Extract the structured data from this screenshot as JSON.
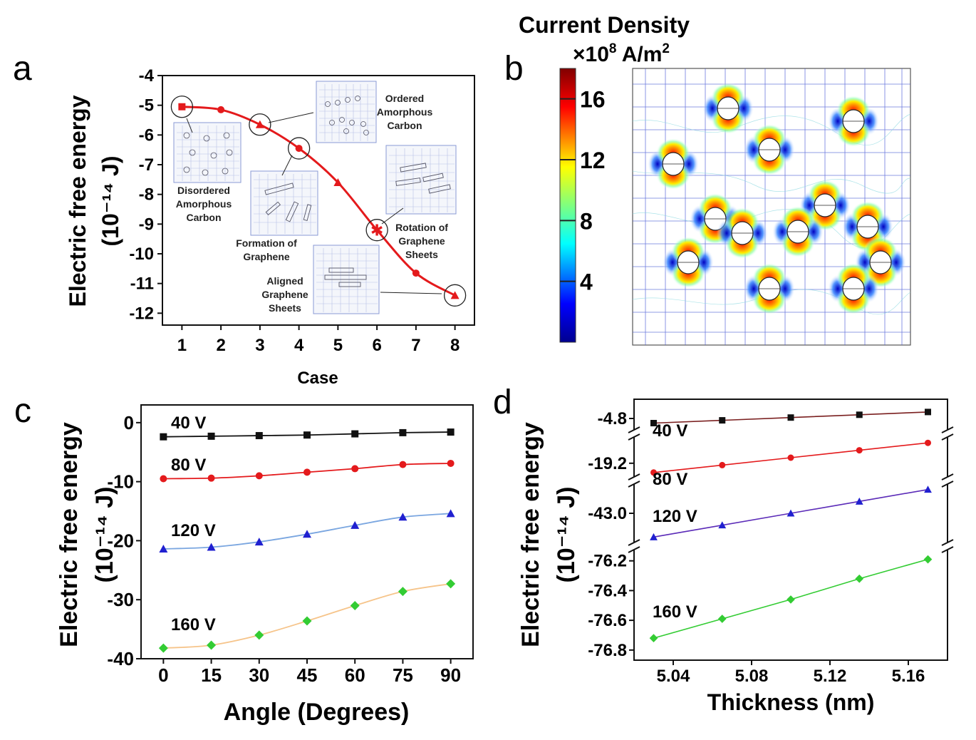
{
  "colors": {
    "black": "#111111",
    "red": "#e41a1c",
    "blue": "#2020d0",
    "lightblue": "#7aa6e0",
    "green": "#33cc33",
    "lightorange": "#f6c48a",
    "purple": "#5b2bb8",
    "darkred": "#7a1f1f"
  },
  "panel_labels": {
    "a": "a",
    "b": "b",
    "c": "c",
    "d": "d"
  },
  "chart_data": [
    {
      "id": "a",
      "type": "line",
      "title": "",
      "xlabel": "Case",
      "ylabel_line1": "Electric free energy",
      "ylabel_line2": "(10⁻¹⁴ J)",
      "xlim": [
        0.5,
        8.5
      ],
      "ylim": [
        -12.4,
        -4
      ],
      "x_ticks": [
        1,
        2,
        3,
        4,
        5,
        6,
        7,
        8
      ],
      "y_ticks": [
        -4,
        -5,
        -6,
        -7,
        -8,
        -9,
        -10,
        -11,
        -12
      ],
      "series": [
        {
          "name": "Electric free energy",
          "color": "#e41a1c",
          "x": [
            1,
            2,
            3,
            4,
            5,
            6,
            7,
            8
          ],
          "y": [
            -5.05,
            -5.15,
            -5.65,
            -6.45,
            -7.6,
            -9.2,
            -10.65,
            -11.4
          ]
        }
      ],
      "highlighted_cases": [
        1,
        3,
        4,
        6,
        8
      ],
      "annotations": [
        {
          "lines": [
            "Disordered",
            "Amorphous",
            "Carbon"
          ]
        },
        {
          "lines": [
            "Ordered",
            "Amorphous",
            "Carbon"
          ]
        },
        {
          "lines": [
            "Formation of",
            "Graphene"
          ]
        },
        {
          "lines": [
            "Rotation of",
            "Graphene",
            "Sheets"
          ]
        },
        {
          "lines": [
            "Aligned",
            "Graphene",
            "Sheets"
          ]
        }
      ]
    },
    {
      "id": "b",
      "type": "heatmap",
      "colorbar_title": "Current Density",
      "colorbar_units_prefix": "×10",
      "colorbar_units_exp": "8",
      "colorbar_units_suffix": " A/m",
      "colorbar_units_exp2": "2",
      "colorbar_ticks": [
        4,
        8,
        12,
        16
      ],
      "colorbar_range": [
        0,
        18
      ]
    },
    {
      "id": "c",
      "type": "line",
      "xlabel": "Angle (Degrees)",
      "ylabel_line1": "Electric free energy",
      "ylabel_line2": "(10⁻¹⁴ J)",
      "xlim": [
        -7,
        97
      ],
      "ylim": [
        -40,
        3
      ],
      "x_ticks": [
        0,
        15,
        30,
        45,
        60,
        75,
        90
      ],
      "y_ticks": [
        0,
        -10,
        -20,
        -30,
        -40
      ],
      "x": [
        0,
        15,
        30,
        45,
        60,
        75,
        90
      ],
      "series": [
        {
          "name": "40 V",
          "marker": "square",
          "color": "#111111",
          "line": "#111111",
          "values": [
            -2.4,
            -2.3,
            -2.2,
            -2.1,
            -1.9,
            -1.7,
            -1.6
          ]
        },
        {
          "name": "80 V",
          "marker": "circle",
          "color": "#e41a1c",
          "line": "#e41a1c",
          "values": [
            -9.5,
            -9.4,
            -9.0,
            -8.4,
            -7.8,
            -7.1,
            -6.9
          ]
        },
        {
          "name": "120 V",
          "marker": "triangle",
          "color": "#2020d0",
          "line": "#7aa6e0",
          "values": [
            -21.4,
            -21.1,
            -20.2,
            -18.9,
            -17.4,
            -16.0,
            -15.4
          ]
        },
        {
          "name": "160 V",
          "marker": "diamond",
          "color": "#33cc33",
          "line": "#f6c48a",
          "values": [
            -38.2,
            -37.7,
            -36.0,
            -33.6,
            -31.0,
            -28.6,
            -27.3
          ]
        }
      ]
    },
    {
      "id": "d",
      "type": "line",
      "xlabel": "Thickness (nm)",
      "ylabel_line1": "Electric free energy",
      "ylabel_line2": "(10⁻¹⁴ J)",
      "xlim": [
        5.02,
        5.18
      ],
      "x_ticks": [
        5.04,
        5.08,
        5.12,
        5.16
      ],
      "x": [
        5.03,
        5.065,
        5.1,
        5.135,
        5.17
      ],
      "y_tick_labels": [
        "-4.8",
        "-19.2",
        "-43.0",
        "-76.2",
        "-76.4",
        "-76.6",
        "-76.8"
      ],
      "series": [
        {
          "name": "40 V",
          "marker": "square",
          "color": "#111111",
          "line": "#7a1f1f",
          "values": [
            -4.805,
            -4.802,
            -4.799,
            -4.796,
            -4.793
          ]
        },
        {
          "name": "80 V",
          "marker": "circle",
          "color": "#e41a1c",
          "line": "#e41a1c",
          "values": [
            -19.25,
            -19.21,
            -19.17,
            -19.13,
            -19.09
          ]
        },
        {
          "name": "120 V",
          "marker": "triangle",
          "color": "#2020d0",
          "line": "#5b2bb8",
          "values": [
            -43.1,
            -43.05,
            -43.0,
            -42.95,
            -42.9
          ]
        },
        {
          "name": "160 V",
          "marker": "diamond",
          "color": "#33cc33",
          "line": "#33cc33",
          "values": [
            -76.72,
            -76.59,
            -76.46,
            -76.32,
            -76.19
          ]
        }
      ]
    }
  ]
}
